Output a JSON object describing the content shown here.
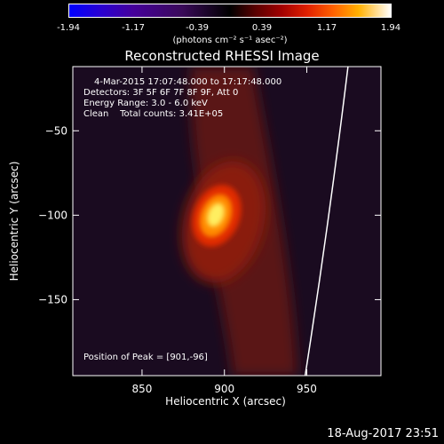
{
  "colorbar": {
    "tick_labels": [
      "-1.94",
      "-1.17",
      "-0.39",
      "0.39",
      "1.17",
      "1.94"
    ],
    "unit": "(photons cm⁻² s⁻¹ asec⁻²)"
  },
  "info": {
    "time_range": "4-Mar-2015 17:07:48.000 to 17:17:48.000",
    "detectors": "Detectors: 3F 5F 6F 7F 8F 9F, Att 0",
    "energy_range": "Energy Range: 3.0 - 6.0 keV",
    "clean_counts": "Clean    Total counts: 3.41E+05",
    "peak": "Position of Peak = [901,-96]"
  },
  "timestamp": "18-Aug-2017 23:51",
  "chart_data": {
    "type": "heatmap",
    "title": "Reconstructed RHESSI Image",
    "xlabel": "Heliocentric X (arcsec)",
    "ylabel": "Heliocentric Y (arcsec)",
    "xlim": [
      808,
      995
    ],
    "ylim": [
      -195,
      -12
    ],
    "xticks": [
      850,
      900,
      950
    ],
    "xtick_labels": [
      "850",
      "900",
      "950"
    ],
    "yticks": [
      -50,
      -100,
      -150
    ],
    "ytick_labels": [
      "−50",
      "−100",
      "−150"
    ],
    "peak": [
      901,
      -96
    ],
    "colorbar_range": [
      -1.94,
      1.94
    ],
    "limb_x_at_ylim": [
      949,
      975
    ]
  }
}
